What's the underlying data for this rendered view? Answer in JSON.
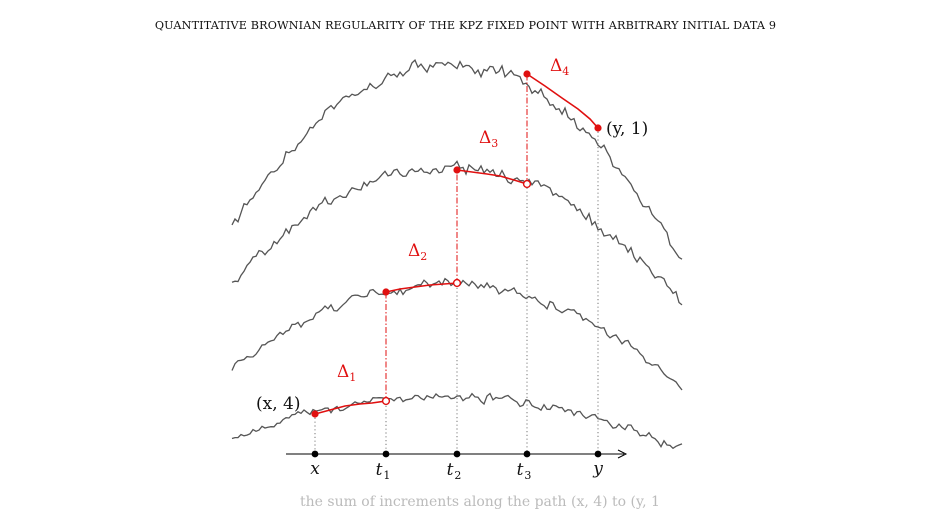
{
  "header": {
    "running_title": "QUANTITATIVE BROWNIAN REGULARITY OF THE KPZ FIXED POINT WITH ARBITRARY INITIAL DATA",
    "page_number": "9"
  },
  "figure": {
    "axis_ticks": [
      {
        "name": "x",
        "sub": ""
      },
      {
        "name": "t",
        "sub": "1"
      },
      {
        "name": "t",
        "sub": "2"
      },
      {
        "name": "t",
        "sub": "3"
      },
      {
        "name": "y",
        "sub": ""
      }
    ],
    "point_labels": {
      "start": "(x, 4)",
      "end": "(y, 1)"
    },
    "delta_labels": [
      {
        "sym": "Δ",
        "sub": "1"
      },
      {
        "sym": "Δ",
        "sub": "2"
      },
      {
        "sym": "Δ",
        "sub": "3"
      },
      {
        "sym": "Δ",
        "sub": "4"
      }
    ],
    "colors": {
      "curve": "#555555",
      "highlight": "#e01010",
      "axis": "#000000",
      "guide": "#777777"
    }
  },
  "caption": {
    "partial_text": "the sum of increments along the path (x, 4) to (y, 1) ..."
  }
}
